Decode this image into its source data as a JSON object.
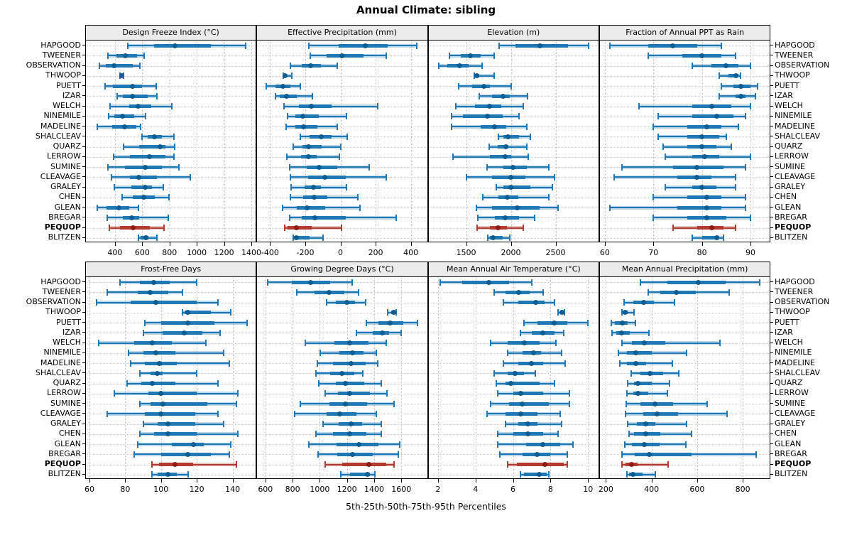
{
  "title": "Annual Climate: sibling",
  "footer": "5th-25th-50th-75th-95th Percentiles",
  "percentile_labels": [
    "5th",
    "25th",
    "50th",
    "75th",
    "95th"
  ],
  "stations": [
    "HAPGOOD",
    "TWEENER",
    "OBSERVATION",
    "THWOOP",
    "PUETT",
    "IZAR",
    "WELCH",
    "NINEMILE",
    "MADELINE",
    "SHALCLEAV",
    "QUARZ",
    "LERROW",
    "SUMINE",
    "CLEAVAGE",
    "GRALEY",
    "CHEN",
    "GLEAN",
    "BREGAR",
    "PEQUOP",
    "BLITZEN"
  ],
  "highlight_station": "PEQUOP",
  "colors": {
    "series": "#1f77b4",
    "series_dot": "#0e5c94",
    "highlight": "#b23a2e",
    "highlight_dot": "#8e1d18",
    "strip_bg": "#ebebeb",
    "grid": "#c3c3c3",
    "border": "#000000"
  },
  "chart_data": [
    {
      "type": "percentile-range",
      "title": "Design Freeze Index (°C)",
      "xlim": [
        187,
        1433
      ],
      "ticks": [
        400,
        600,
        800,
        1000,
        1200,
        1400
      ],
      "series": {
        "HAPGOOD": [
          495,
          685,
          840,
          1105,
          1360
        ],
        "TWEENER": [
          350,
          410,
          475,
          560,
          615
        ],
        "OBSERVATION": [
          285,
          335,
          395,
          530,
          585
        ],
        "THWOOP": [
          435,
          445,
          450,
          456,
          465
        ],
        "PUETT": [
          325,
          385,
          530,
          600,
          700
        ],
        "IZAR": [
          415,
          460,
          530,
          640,
          710
        ],
        "WELCH": [
          365,
          505,
          570,
          665,
          815
        ],
        "NINEMILE": [
          355,
          395,
          455,
          540,
          625
        ],
        "MADELINE": [
          270,
          380,
          470,
          555,
          590
        ],
        "SHALCLEAV": [
          600,
          640,
          690,
          745,
          830
        ],
        "QUARZ": [
          465,
          580,
          730,
          770,
          840
        ],
        "LERROW": [
          390,
          510,
          655,
          770,
          835
        ],
        "SUMINE": [
          350,
          475,
          620,
          745,
          870
        ],
        "CLEAVAGE": [
          375,
          510,
          575,
          710,
          950
        ],
        "GRALEY": [
          395,
          520,
          620,
          670,
          755
        ],
        "CHEN": [
          450,
          530,
          610,
          690,
          795
        ],
        "GLEAN": [
          270,
          340,
          430,
          505,
          570
        ],
        "BREGAR": [
          345,
          460,
          525,
          575,
          790
        ],
        "PEQUOP": [
          360,
          435,
          535,
          655,
          760
        ],
        "BLITZEN": [
          570,
          590,
          625,
          645,
          710
        ]
      }
    },
    {
      "type": "percentile-range",
      "title": "Effective Precipitation (mm)",
      "xlim": [
        -473,
        493
      ],
      "ticks": [
        -400,
        -200,
        0,
        200,
        400
      ],
      "series": {
        "HAPGOOD": [
          -180,
          -10,
          140,
          270,
          435
        ],
        "TWEENER": [
          -170,
          -80,
          10,
          130,
          260
        ],
        "OBSERVATION": [
          -285,
          -220,
          -170,
          -110,
          -20
        ],
        "THWOOP": [
          -325,
          -318,
          -313,
          -305,
          -275
        ],
        "PUETT": [
          -420,
          -370,
          -325,
          -285,
          -230
        ],
        "IZAR": [
          -370,
          -345,
          -305,
          -250,
          -160
        ],
        "WELCH": [
          -320,
          -235,
          -165,
          -50,
          210
        ],
        "NINEMILE": [
          -300,
          -255,
          -215,
          -125,
          35
        ],
        "MADELINE": [
          -310,
          -255,
          -210,
          -130,
          -20
        ],
        "SHALCLEAV": [
          -230,
          -175,
          -110,
          -50,
          40
        ],
        "QUARZ": [
          -270,
          -215,
          -180,
          -105,
          0
        ],
        "LERROW": [
          -305,
          -225,
          -180,
          -135,
          -5
        ],
        "SUMINE": [
          -290,
          -190,
          -120,
          -20,
          165
        ],
        "CLEAVAGE": [
          -285,
          -185,
          -90,
          30,
          260
        ],
        "GRALEY": [
          -280,
          -205,
          -155,
          -110,
          35
        ],
        "CHEN": [
          -285,
          -210,
          -150,
          -75,
          100
        ],
        "GLEAN": [
          -330,
          -250,
          -190,
          -85,
          110
        ],
        "BREGAR": [
          -290,
          -220,
          -145,
          30,
          315
        ],
        "PEQUOP": [
          -315,
          -300,
          -250,
          -165,
          5
        ],
        "BLITZEN": [
          -270,
          -265,
          -250,
          -175,
          -100
        ]
      }
    },
    {
      "type": "percentile-range",
      "title": "Elevation (m)",
      "xlim": [
        1080,
        2980
      ],
      "ticks": [
        1500,
        2000,
        2500
      ],
      "series": {
        "HAPGOOD": [
          1865,
          2050,
          2325,
          2640,
          2865
        ],
        "TWEENER": [
          1310,
          1440,
          1545,
          1660,
          1815
        ],
        "OBSERVATION": [
          1195,
          1290,
          1430,
          1530,
          1675
        ],
        "THWOOP": [
          1590,
          1600,
          1620,
          1650,
          1810
        ],
        "PUETT": [
          1415,
          1570,
          1695,
          1765,
          2000
        ],
        "IZAR": [
          1650,
          1790,
          1915,
          1985,
          2185
        ],
        "WELCH": [
          1385,
          1600,
          1765,
          1890,
          2140
        ],
        "NINEMILE": [
          1335,
          1465,
          1735,
          1905,
          2090
        ],
        "MADELINE": [
          1340,
          1660,
          1815,
          1945,
          2180
        ],
        "SHALCLEAV": [
          1860,
          1915,
          1970,
          2090,
          2215
        ],
        "QUARZ": [
          1755,
          1855,
          1945,
          1970,
          2175
        ],
        "LERROW": [
          1355,
          1765,
          1940,
          2000,
          2195
        ],
        "SUMINE": [
          1735,
          1915,
          2025,
          2175,
          2425
        ],
        "CLEAVAGE": [
          1500,
          1790,
          2000,
          2160,
          2490
        ],
        "GRALEY": [
          1835,
          1915,
          2000,
          2215,
          2465
        ],
        "CHEN": [
          1685,
          1860,
          1960,
          2080,
          2425
        ],
        "GLEAN": [
          1615,
          1790,
          2070,
          2325,
          2525
        ],
        "BREGAR": [
          1630,
          1820,
          1940,
          2095,
          2265
        ],
        "PEQUOP": [
          1625,
          1765,
          1860,
          1960,
          2135
        ],
        "BLITZEN": [
          1740,
          1765,
          1800,
          1905,
          1990
        ]
      }
    },
    {
      "type": "percentile-range",
      "title": "Fraction of Annual PPT as Rain",
      "xlim": [
        59,
        94
      ],
      "ticks": [
        60,
        70,
        80,
        90
      ],
      "series": {
        "HAPGOOD": [
          61,
          69,
          74,
          79,
          84
        ],
        "TWEENER": [
          69,
          76,
          80,
          84,
          87
        ],
        "OBSERVATION": [
          78,
          82,
          85,
          87.5,
          90
        ],
        "THWOOP": [
          83.5,
          85.5,
          87,
          87.5,
          88
        ],
        "PUETT": [
          84,
          86.5,
          88,
          90,
          91.5
        ],
        "IZAR": [
          83.5,
          87,
          88,
          89,
          91
        ],
        "WELCH": [
          67,
          78,
          82,
          86,
          90
        ],
        "NINEMILE": [
          71,
          78,
          83,
          86.5,
          89
        ],
        "MADELINE": [
          70,
          77,
          81,
          84,
          87.5
        ],
        "SHALCLEAV": [
          71,
          77,
          80,
          83.5,
          85
        ],
        "QUARZ": [
          72,
          77,
          80,
          83,
          86
        ],
        "LERROW": [
          72.5,
          78,
          80.5,
          83.5,
          90
        ],
        "SUMINE": [
          63.5,
          74,
          79,
          84.5,
          89
        ],
        "CLEAVAGE": [
          62,
          75,
          79,
          82,
          87
        ],
        "GRALEY": [
          72.5,
          78,
          80,
          83,
          87
        ],
        "CHEN": [
          70,
          77,
          81,
          84,
          89
        ],
        "GLEAN": [
          61,
          75,
          81,
          84,
          89
        ],
        "BREGAR": [
          70,
          77,
          81,
          85,
          90
        ],
        "PEQUOP": [
          74,
          79,
          82,
          84.5,
          87
        ],
        "BLITZEN": [
          78,
          80,
          83,
          83.5,
          84.5
        ]
      }
    },
    {
      "type": "percentile-range",
      "title": "Frost-Free Days",
      "xlim": [
        58,
        153
      ],
      "ticks": [
        60,
        80,
        100,
        120,
        140
      ],
      "series": {
        "HAPGOOD": [
          77,
          88,
          96,
          105,
          120
        ],
        "TWEENER": [
          70,
          87,
          94,
          104,
          112
        ],
        "OBSERVATION": [
          64,
          83,
          97,
          120,
          132
        ],
        "THWOOP": [
          112,
          113,
          115,
          128,
          139
        ],
        "PUETT": [
          91,
          100,
          115,
          130,
          148
        ],
        "IZAR": [
          90,
          101,
          113,
          123,
          133
        ],
        "WELCH": [
          65,
          85,
          95,
          106,
          125
        ],
        "NINEMILE": [
          82,
          90,
          97,
          108,
          135
        ],
        "MADELINE": [
          83,
          91,
          99,
          109,
          138
        ],
        "SHALCLEAV": [
          88,
          94,
          98,
          101,
          120
        ],
        "QUARZ": [
          81,
          89,
          95,
          108,
          132
        ],
        "LERROW": [
          74,
          93,
          100,
          120,
          143
        ],
        "SUMINE": [
          88,
          94,
          101,
          126,
          142
        ],
        "CLEAVAGE": [
          70,
          91,
          100,
          119,
          132
        ],
        "GRALEY": [
          90,
          98,
          104,
          119,
          135
        ],
        "CHEN": [
          88,
          96,
          104,
          120,
          143
        ],
        "GLEAN": [
          87,
          106,
          118,
          124,
          139
        ],
        "BREGAR": [
          85,
          100,
          115,
          128,
          138
        ],
        "PEQUOP": [
          95,
          99,
          108,
          118,
          142
        ],
        "BLITZEN": [
          95,
          98,
          104,
          109,
          115
        ]
      }
    },
    {
      "type": "percentile-range",
      "title": "Growing Degree Days (°C)",
      "xlim": [
        540,
        1790
      ],
      "ticks": [
        600,
        800,
        1000,
        1200,
        1400,
        1600
      ],
      "series": {
        "HAPGOOD": [
          615,
          795,
          935,
          1075,
          1240
        ],
        "TWEENER": [
          830,
          960,
          1070,
          1180,
          1285
        ],
        "OBSERVATION": [
          1050,
          1120,
          1200,
          1260,
          1335
        ],
        "THWOOP": [
          1500,
          1525,
          1545,
          1552,
          1560
        ],
        "PUETT": [
          1345,
          1430,
          1520,
          1615,
          1720
        ],
        "IZAR": [
          1270,
          1390,
          1460,
          1510,
          1600
        ],
        "WELCH": [
          895,
          1110,
          1220,
          1360,
          1490
        ],
        "NINEMILE": [
          1005,
          1145,
          1240,
          1320,
          1415
        ],
        "MADELINE": [
          980,
          1095,
          1230,
          1335,
          1425
        ],
        "SHALCLEAV": [
          970,
          1075,
          1165,
          1255,
          1315
        ],
        "QUARZ": [
          995,
          1120,
          1190,
          1325,
          1450
        ],
        "LERROW": [
          1040,
          1135,
          1220,
          1370,
          1495
        ],
        "SUMINE": [
          855,
          1070,
          1190,
          1350,
          1545
        ],
        "CLEAVAGE": [
          815,
          1050,
          1145,
          1270,
          1415
        ],
        "GRALEY": [
          1025,
          1140,
          1230,
          1310,
          1450
        ],
        "CHEN": [
          970,
          1095,
          1220,
          1345,
          1450
        ],
        "GLEAN": [
          920,
          1125,
          1290,
          1430,
          1590
        ],
        "BREGAR": [
          990,
          1130,
          1240,
          1390,
          1580
        ],
        "PEQUOP": [
          1040,
          1165,
          1360,
          1490,
          1545
        ],
        "BLITZEN": [
          1155,
          1225,
          1350,
          1370,
          1405
        ]
      }
    },
    {
      "type": "percentile-range",
      "title": "Mean Annual Air Temperature (°C)",
      "xlim": [
        1.5,
        10.56
      ],
      "ticks": [
        2,
        4,
        6,
        8,
        10
      ],
      "series": {
        "HAPGOOD": [
          2.1,
          3.3,
          4.7,
          5.8,
          7.0
        ],
        "TWEENER": [
          5.0,
          5.6,
          6.3,
          6.9,
          7.6
        ],
        "OBSERVATION": [
          5.5,
          6.3,
          7.2,
          7.7,
          8.2
        ],
        "THWOOP": [
          8.4,
          8.5,
          8.6,
          8.65,
          8.75
        ],
        "PUETT": [
          6.6,
          7.3,
          8.2,
          8.9,
          10.0
        ],
        "IZAR": [
          6.4,
          7.0,
          7.6,
          8.2,
          8.7
        ],
        "WELCH": [
          4.8,
          5.7,
          6.6,
          7.4,
          8.3
        ],
        "NINEMILE": [
          5.7,
          6.5,
          7.1,
          7.5,
          8.6
        ],
        "MADELINE": [
          5.5,
          6.3,
          7.0,
          7.6,
          8.8
        ],
        "SHALCLEAV": [
          5.0,
          5.7,
          6.1,
          6.6,
          7.2
        ],
        "QUARZ": [
          5.1,
          5.6,
          5.9,
          7.4,
          8.2
        ],
        "LERROW": [
          5.2,
          6.0,
          6.4,
          7.6,
          9.0
        ],
        "SUMINE": [
          4.8,
          5.8,
          6.5,
          7.9,
          9.0
        ],
        "CLEAVAGE": [
          4.6,
          5.6,
          6.4,
          7.3,
          8.5
        ],
        "GRALEY": [
          5.6,
          6.3,
          6.8,
          7.3,
          8.6
        ],
        "CHEN": [
          5.2,
          6.0,
          6.8,
          7.6,
          8.4
        ],
        "GLEAN": [
          5.2,
          6.7,
          7.6,
          8.5,
          9.2
        ],
        "BREGAR": [
          5.3,
          6.5,
          7.3,
          8.0,
          8.9
        ],
        "PEQUOP": [
          5.7,
          6.2,
          7.7,
          8.7,
          8.9
        ],
        "BLITZEN": [
          6.4,
          6.6,
          7.4,
          7.8,
          7.9
        ]
      }
    },
    {
      "type": "percentile-range",
      "title": "Mean Annual Precipitation (mm)",
      "xlim": [
        174,
        919
      ],
      "ticks": [
        200,
        400,
        600,
        800
      ],
      "series": {
        "HAPGOOD": [
          350,
          470,
          605,
          725,
          875
        ],
        "TWEENER": [
          385,
          440,
          510,
          595,
          740
        ],
        "OBSERVATION": [
          280,
          320,
          365,
          410,
          500
        ],
        "THWOOP": [
          270,
          273,
          283,
          297,
          325
        ],
        "PUETT": [
          225,
          240,
          272,
          295,
          330
        ],
        "IZAR": [
          228,
          245,
          270,
          305,
          390
        ],
        "WELCH": [
          272,
          315,
          370,
          460,
          700
        ],
        "NINEMILE": [
          255,
          293,
          330,
          400,
          555
        ],
        "MADELINE": [
          260,
          293,
          330,
          375,
          490
        ],
        "SHALCLEAV": [
          310,
          350,
          395,
          450,
          520
        ],
        "QUARZ": [
          297,
          325,
          342,
          400,
          480
        ],
        "LERROW": [
          293,
          320,
          340,
          385,
          470
        ],
        "SUMINE": [
          290,
          352,
          415,
          495,
          645
        ],
        "CLEAVAGE": [
          287,
          365,
          425,
          515,
          730
        ],
        "GRALEY": [
          297,
          335,
          375,
          417,
          555
        ],
        "CHEN": [
          303,
          325,
          375,
          438,
          575
        ],
        "GLEAN": [
          283,
          315,
          370,
          435,
          550
        ],
        "BREGAR": [
          270,
          328,
          390,
          575,
          860
        ],
        "PEQUOP": [
          272,
          287,
          314,
          340,
          473
        ],
        "BLITZEN": [
          293,
          303,
          318,
          360,
          417
        ]
      }
    }
  ]
}
